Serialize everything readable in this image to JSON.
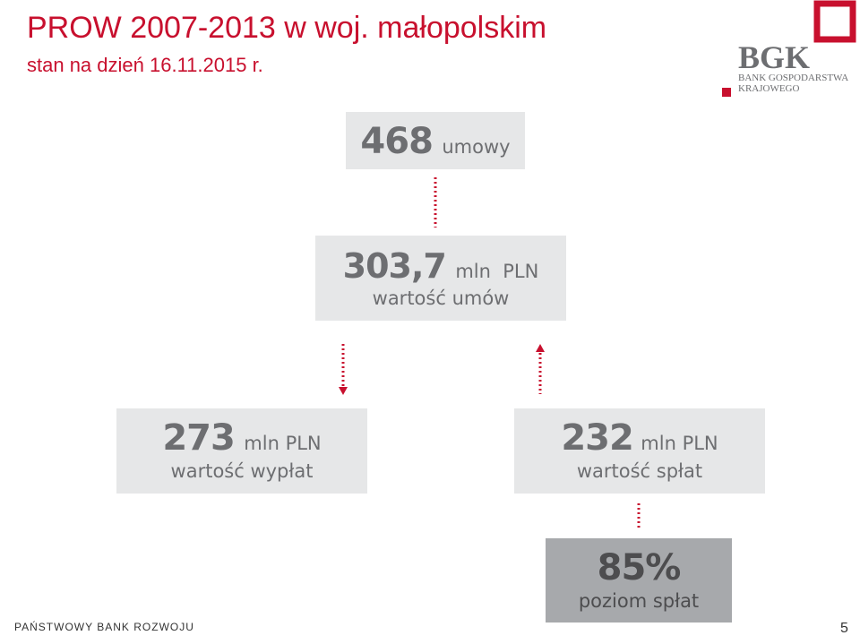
{
  "header": {
    "title": "PROW 2007-2013 w woj. małopolskim",
    "subtitle": "stan na dzień 16.11.2015 r."
  },
  "logo": {
    "letters": "BGK",
    "line1": "BANK GOSPODARSTWA",
    "line2": "KRAJOWEGO",
    "color_text": "#6d6e71",
    "color_accent": "#c8102e"
  },
  "boxes": {
    "contracts": {
      "value": "468",
      "unit": "umowy"
    },
    "contract_value": {
      "value": "303,7",
      "unit": "mln  PLN",
      "label": "wartość umów"
    },
    "payouts": {
      "value": "273",
      "unit": "mln PLN",
      "label": "wartość wypłat"
    },
    "repayments": {
      "value": "232",
      "unit": "mln PLN",
      "label": "wartość spłat"
    },
    "repayment_level": {
      "value": "85%",
      "label": "poziom spłat"
    }
  },
  "footer": {
    "org": "PAŃSTWOWY BANK ROZWOJU",
    "page": "5"
  },
  "colors": {
    "accent": "#c8102e",
    "box_light": "#e6e7e8",
    "box_dark": "#a7a9ac",
    "text_grey": "#6d6e71"
  }
}
